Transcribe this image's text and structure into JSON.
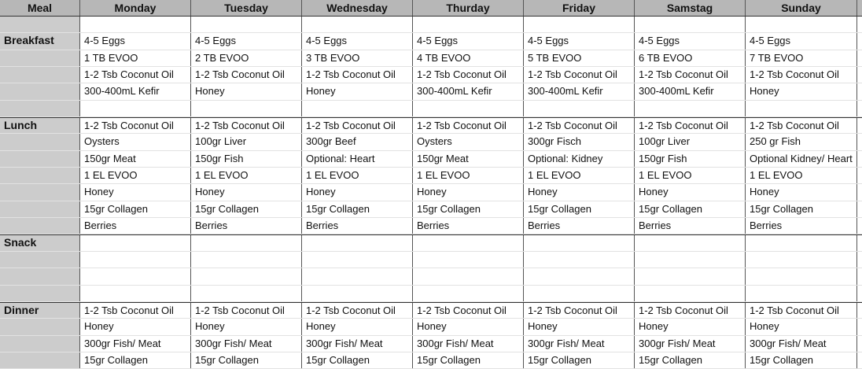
{
  "headers": [
    "Meal",
    "Monday",
    "Tuesday",
    "Wednesday",
    "Thurday",
    "Friday",
    "Samstag",
    "Sunday"
  ],
  "sections": [
    {
      "label": "",
      "rows": [
        [
          "",
          "",
          "",
          "",
          "",
          "",
          ""
        ]
      ]
    },
    {
      "label": "Breakfast",
      "rows": [
        [
          "4-5 Eggs",
          "4-5 Eggs",
          "4-5 Eggs",
          "4-5 Eggs",
          "4-5 Eggs",
          "4-5 Eggs",
          "4-5 Eggs"
        ],
        [
          "1 TB EVOO",
          "2 TB EVOO",
          "3 TB EVOO",
          "4 TB EVOO",
          "5 TB EVOO",
          "6 TB EVOO",
          "7 TB EVOO"
        ],
        [
          "1-2 Tsb Coconut Oil",
          "1-2 Tsb Coconut Oil",
          "1-2 Tsb Coconut Oil",
          "1-2 Tsb Coconut Oil",
          "1-2 Tsb Coconut Oil",
          "1-2 Tsb Coconut Oil",
          "1-2 Tsb Coconut Oil"
        ],
        [
          "300-400mL Kefir",
          "Honey",
          "Honey",
          "300-400mL Kefir",
          "300-400mL Kefir",
          "300-400mL Kefir",
          "Honey"
        ],
        [
          "",
          "",
          "",
          "",
          "",
          "",
          ""
        ]
      ]
    },
    {
      "label": "Lunch",
      "rows": [
        [
          "1-2 Tsb Coconut Oil",
          "1-2 Tsb Coconut Oil",
          "1-2 Tsb Coconut Oil",
          "1-2 Tsb Coconut Oil",
          "1-2 Tsb Coconut Oil",
          "1-2 Tsb Coconut Oil",
          "1-2 Tsb Coconut Oil"
        ],
        [
          "Oysters",
          "100gr Liver",
          "300gr Beef",
          "Oysters",
          "300gr Fisch",
          "100gr Liver",
          "250 gr Fish"
        ],
        [
          "150gr Meat",
          "150gr Fish",
          "Optional: Heart",
          "150gr Meat",
          "Optional: Kidney",
          "150gr Fish",
          "Optional Kidney/ Heart"
        ],
        [
          "1 EL EVOO",
          "1 EL EVOO",
          "1 EL EVOO",
          "1 EL EVOO",
          "1 EL EVOO",
          "1 EL EVOO",
          "1 EL EVOO"
        ],
        [
          "Honey",
          "Honey",
          "Honey",
          "Honey",
          "Honey",
          "Honey",
          "Honey"
        ],
        [
          "15gr Collagen",
          "15gr Collagen",
          "15gr Collagen",
          "15gr Collagen",
          "15gr Collagen",
          "15gr Collagen",
          "15gr Collagen"
        ],
        [
          "Berries",
          "Berries",
          "Berries",
          "Berries",
          "Berries",
          "Berries",
          "Berries"
        ]
      ]
    },
    {
      "label": "Snack",
      "rows": [
        [
          "",
          "",
          "",
          "",
          "",
          "",
          ""
        ],
        [
          "",
          "",
          "",
          "",
          "",
          "",
          ""
        ],
        [
          "",
          "",
          "",
          "",
          "",
          "",
          ""
        ],
        [
          "",
          "",
          "",
          "",
          "",
          "",
          ""
        ]
      ]
    },
    {
      "label": "Dinner",
      "rows": [
        [
          "1-2 Tsb Coconut Oil",
          "1-2 Tsb Coconut Oil",
          "1-2 Tsb Coconut Oil",
          "1-2 Tsb Coconut Oil",
          "1-2 Tsb Coconut Oil",
          "1-2 Tsb Coconut Oil",
          "1-2 Tsb Coconut Oil"
        ],
        [
          "Honey",
          "Honey",
          "Honey",
          "Honey",
          "Honey",
          "Honey",
          "Honey"
        ],
        [
          "300gr Fish/ Meat",
          "300gr Fish/ Meat",
          "300gr Fish/ Meat",
          "300gr Fish/ Meat",
          "300gr Fish/ Meat",
          "300gr Fish/ Meat",
          "300gr Fish/ Meat"
        ],
        [
          "15gr Collagen",
          "15gr Collagen",
          "15gr Collagen",
          "15gr Collagen",
          "15gr Collagen",
          "15gr Collagen",
          "15gr Collagen"
        ]
      ]
    }
  ]
}
